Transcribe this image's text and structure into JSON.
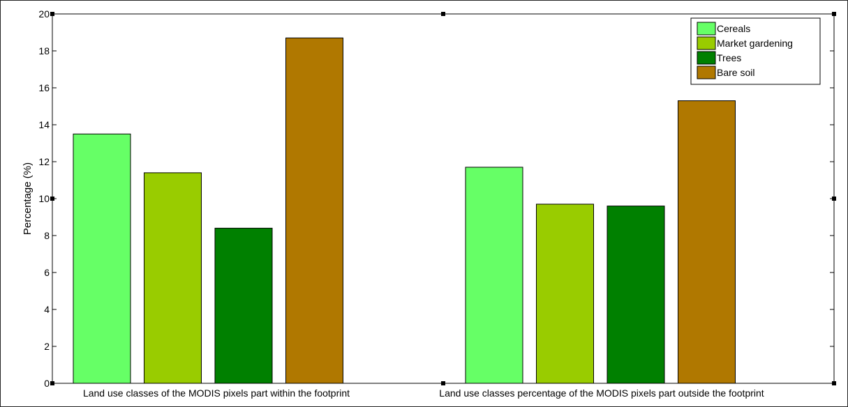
{
  "chart_data": {
    "type": "bar",
    "categories": [
      "Land use classes of the MODIS pixels part within the footprint",
      "Land use classes percentage of the MODIS pixels part outside the footprint"
    ],
    "series": [
      {
        "name": "Cereals",
        "color": "#66ff66",
        "values": [
          13.5,
          11.7
        ]
      },
      {
        "name": "Market gardening",
        "color": "#99cc00",
        "values": [
          11.4,
          9.7
        ]
      },
      {
        "name": "Trees",
        "color": "#008000",
        "values": [
          8.4,
          9.6
        ]
      },
      {
        "name": "Bare soil",
        "color": "#b07800",
        "values": [
          18.7,
          15.3
        ]
      }
    ],
    "ylabel": "Percentage (%)",
    "ylim": [
      0,
      20
    ],
    "yticks": [
      0,
      2,
      4,
      6,
      8,
      10,
      12,
      14,
      16,
      18,
      20
    ],
    "grid": false,
    "legend_position": "top-right"
  }
}
